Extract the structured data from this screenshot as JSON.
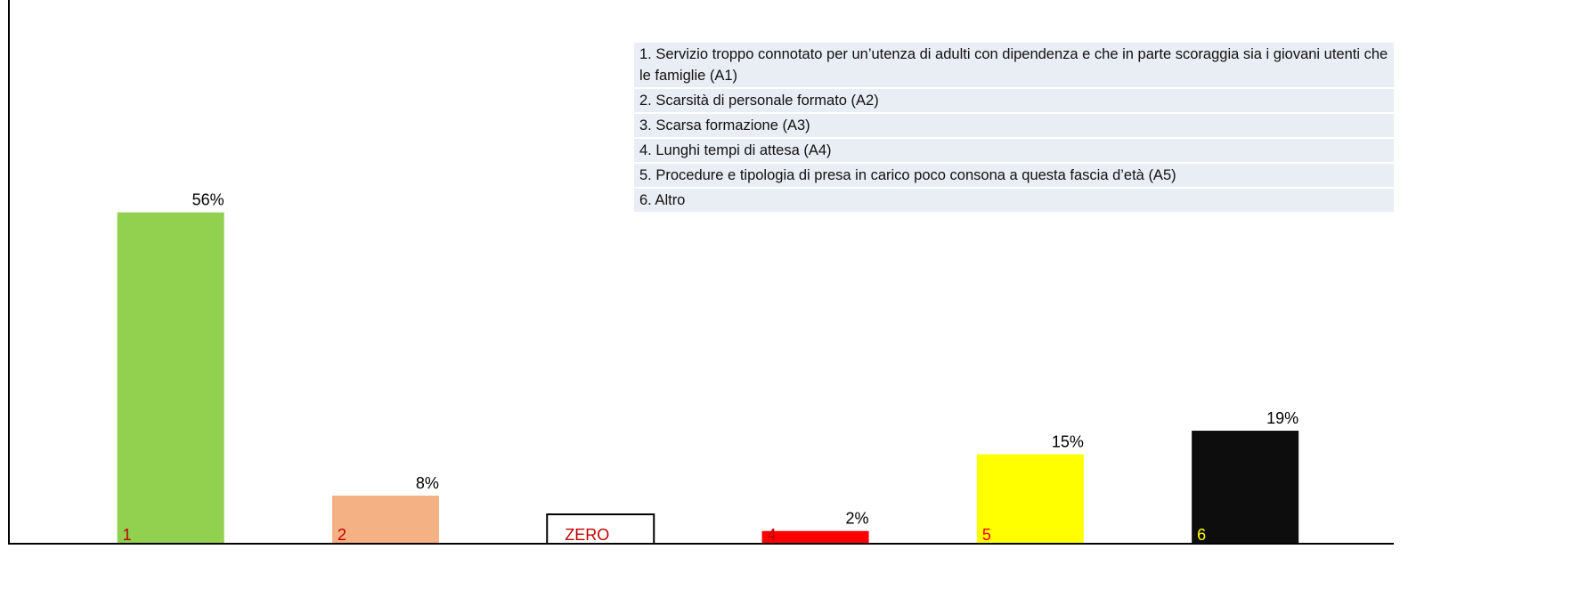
{
  "chart_data": {
    "type": "bar",
    "categories": [
      "1",
      "2",
      "ZERO",
      "4",
      "5",
      "6"
    ],
    "values": [
      56,
      8,
      0,
      2,
      15,
      19
    ],
    "value_labels": [
      "56%",
      "8%",
      null,
      "2%",
      "15%",
      "19%"
    ],
    "colors": [
      "#92d050",
      "#f4b183",
      "#ffffff",
      "#ff0000",
      "#ffff00",
      "#0d0d0d"
    ],
    "label_colors": [
      "#c00000",
      "#c00000",
      "#c00000",
      "#c00000",
      "#ff0000",
      "#ffff00"
    ],
    "ylim": [
      0,
      92
    ],
    "legend_items": [
      "1. Servizio troppo connotato per un’utenza di adulti con dipendenza e che in parte scoraggia sia i giovani utenti che le famiglie (A1)",
      "2. Scarsità di personale formato (A2)",
      "3. Scarsa formazione (A3)",
      "4. Lunghi tempi di attesa (A4)",
      "5. Procedure e tipologia di presa in carico poco consona a questa fascia d’età (A5)",
      "6. Altro"
    ]
  }
}
